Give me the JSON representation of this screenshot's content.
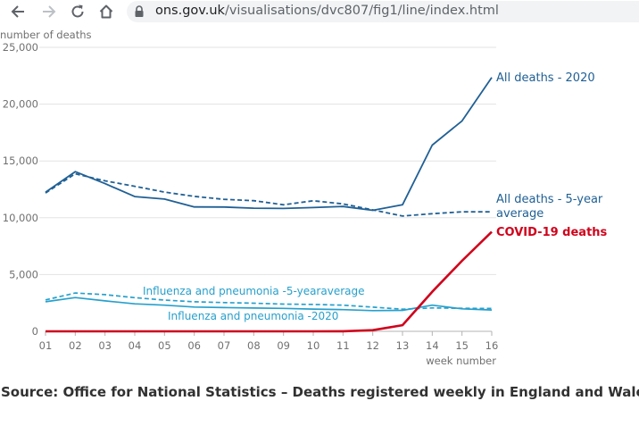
{
  "browser": {
    "url_domain": "ons.gov.uk",
    "url_path": "/visualisations/dvc807/fig1/line/index.html"
  },
  "chart_data": {
    "type": "line",
    "ylabel": "number of deaths",
    "xlabel": "week number",
    "categories": [
      "01",
      "02",
      "03",
      "04",
      "05",
      "06",
      "07",
      "08",
      "09",
      "10",
      "11",
      "12",
      "13",
      "14",
      "15",
      "16"
    ],
    "ylim": [
      0,
      25000
    ],
    "yticks": [
      {
        "value": 0,
        "label": "0"
      },
      {
        "value": 5000,
        "label": "5,000"
      },
      {
        "value": 10000,
        "label": "10,000"
      },
      {
        "value": 15000,
        "label": "15,000"
      },
      {
        "value": 20000,
        "label": "20,000"
      },
      {
        "value": 25000,
        "label": "25,000"
      }
    ],
    "grid": true,
    "series": [
      {
        "name": "All deaths - 2020",
        "color": "#206095",
        "dashed": false,
        "values": [
          12250,
          14060,
          13000,
          11860,
          11640,
          10950,
          10940,
          10840,
          10820,
          10900,
          10990,
          10650,
          11140,
          16390,
          18520,
          22350
        ]
      },
      {
        "name": "All deaths - 5-year average",
        "color": "#206095",
        "dashed": true,
        "values": [
          12180,
          13870,
          13250,
          12770,
          12260,
          11880,
          11620,
          11500,
          11140,
          11490,
          11220,
          10690,
          10150,
          10350,
          10520,
          10520
        ]
      },
      {
        "name": "COVID-19 deaths",
        "color": "#d0021b",
        "dashed": false,
        "values": [
          0,
          0,
          0,
          0,
          0,
          0,
          0,
          0,
          0,
          0,
          5,
          100,
          540,
          3480,
          6210,
          8760
        ]
      },
      {
        "name": "Influenza and pneumonia -5-yearaverage",
        "color": "#27a0cc",
        "dashed": true,
        "values": [
          2770,
          3370,
          3230,
          2960,
          2750,
          2600,
          2530,
          2480,
          2400,
          2370,
          2300,
          2130,
          1950,
          2060,
          2030,
          2010
        ]
      },
      {
        "name": "Influenza and pneumonia -2020",
        "color": "#27a0cc",
        "dashed": false,
        "values": [
          2600,
          2970,
          2680,
          2420,
          2300,
          2140,
          2090,
          2050,
          2020,
          1960,
          1910,
          1820,
          1850,
          2300,
          1980,
          1880
        ]
      }
    ]
  },
  "source_text": "Source: Office for National Statistics – Deaths registered weekly in England and Wales"
}
